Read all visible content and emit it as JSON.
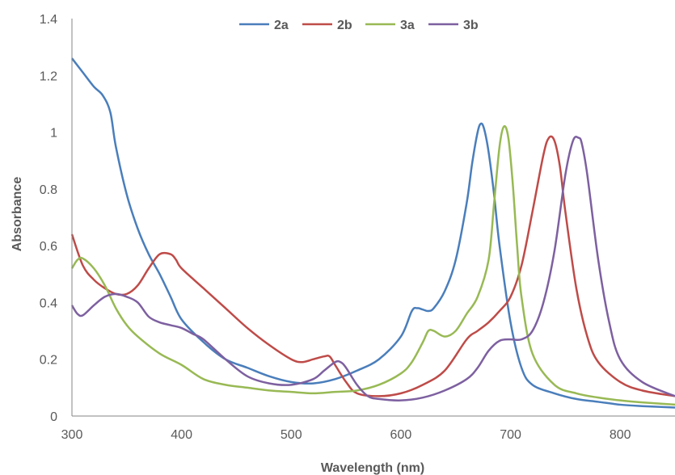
{
  "chart_data": {
    "type": "line",
    "title": "",
    "xlabel": "Wavelength (nm)",
    "ylabel": "Absorbance",
    "xlim": [
      300,
      850
    ],
    "ylim": [
      0,
      1.4
    ],
    "xticks": [
      300,
      400,
      500,
      600,
      700,
      800
    ],
    "xtick_labels": [
      "300",
      "400",
      "500",
      "600",
      "700",
      "800"
    ],
    "yticks": [
      0,
      0.2,
      0.4,
      0.6,
      0.8,
      1,
      1.2,
      1.4
    ],
    "ytick_labels": [
      "0",
      "0.2",
      "0.4",
      "0.6",
      "0.8",
      "1",
      "1.2",
      "1.4"
    ],
    "grid": false,
    "legend_position": "top",
    "series": [
      {
        "name": "2a",
        "color": "#4a7ebb",
        "x": [
          300,
          310,
          320,
          328,
          335,
          340,
          350,
          360,
          370,
          380,
          390,
          400,
          420,
          440,
          460,
          480,
          500,
          520,
          540,
          560,
          580,
          600,
          610,
          615,
          620,
          625,
          630,
          640,
          650,
          660,
          665,
          670,
          673,
          676,
          680,
          685,
          690,
          700,
          710,
          720,
          740,
          760,
          780,
          800,
          820,
          850
        ],
        "y": [
          1.26,
          1.21,
          1.16,
          1.13,
          1.07,
          0.95,
          0.78,
          0.66,
          0.57,
          0.5,
          0.42,
          0.34,
          0.26,
          0.2,
          0.17,
          0.14,
          0.12,
          0.115,
          0.13,
          0.16,
          0.2,
          0.28,
          0.37,
          0.38,
          0.375,
          0.37,
          0.38,
          0.44,
          0.55,
          0.75,
          0.89,
          1.0,
          1.03,
          1.01,
          0.93,
          0.78,
          0.6,
          0.33,
          0.17,
          0.11,
          0.08,
          0.06,
          0.05,
          0.04,
          0.035,
          0.03
        ]
      },
      {
        "name": "2b",
        "color": "#be4b48",
        "x": [
          300,
          310,
          320,
          330,
          340,
          350,
          360,
          370,
          380,
          390,
          395,
          400,
          420,
          440,
          460,
          480,
          500,
          510,
          520,
          530,
          535,
          540,
          550,
          560,
          580,
          600,
          620,
          640,
          660,
          670,
          680,
          690,
          700,
          710,
          720,
          730,
          735,
          740,
          745,
          750,
          760,
          770,
          780,
          800,
          820,
          850
        ],
        "y": [
          0.64,
          0.53,
          0.48,
          0.45,
          0.43,
          0.43,
          0.46,
          0.52,
          0.57,
          0.57,
          0.55,
          0.52,
          0.45,
          0.38,
          0.31,
          0.25,
          0.2,
          0.19,
          0.2,
          0.21,
          0.21,
          0.18,
          0.12,
          0.08,
          0.07,
          0.08,
          0.11,
          0.16,
          0.27,
          0.3,
          0.33,
          0.37,
          0.42,
          0.53,
          0.72,
          0.92,
          0.98,
          0.97,
          0.88,
          0.72,
          0.45,
          0.28,
          0.19,
          0.12,
          0.09,
          0.07
        ]
      },
      {
        "name": "3a",
        "color": "#98b954",
        "x": [
          300,
          305,
          310,
          320,
          330,
          340,
          350,
          360,
          380,
          400,
          420,
          440,
          460,
          480,
          500,
          520,
          540,
          560,
          580,
          600,
          610,
          620,
          625,
          630,
          640,
          650,
          660,
          670,
          680,
          685,
          690,
          694,
          698,
          702,
          706,
          710,
          720,
          740,
          760,
          780,
          800,
          820,
          850
        ],
        "y": [
          0.52,
          0.55,
          0.555,
          0.52,
          0.46,
          0.38,
          0.32,
          0.28,
          0.22,
          0.18,
          0.13,
          0.11,
          0.1,
          0.09,
          0.085,
          0.08,
          0.085,
          0.09,
          0.11,
          0.15,
          0.19,
          0.26,
          0.3,
          0.3,
          0.28,
          0.3,
          0.36,
          0.42,
          0.55,
          0.75,
          0.95,
          1.02,
          0.98,
          0.82,
          0.6,
          0.42,
          0.22,
          0.11,
          0.08,
          0.065,
          0.055,
          0.048,
          0.04
        ]
      },
      {
        "name": "3b",
        "color": "#7d60a0",
        "x": [
          300,
          305,
          310,
          320,
          330,
          340,
          350,
          360,
          370,
          380,
          390,
          400,
          410,
          420,
          440,
          460,
          480,
          500,
          520,
          530,
          540,
          545,
          550,
          560,
          570,
          580,
          600,
          620,
          640,
          660,
          670,
          680,
          690,
          700,
          710,
          720,
          730,
          740,
          750,
          757,
          762,
          765,
          770,
          780,
          790,
          800,
          820,
          850
        ],
        "y": [
          0.39,
          0.36,
          0.355,
          0.39,
          0.42,
          0.43,
          0.42,
          0.4,
          0.35,
          0.33,
          0.32,
          0.31,
          0.29,
          0.27,
          0.2,
          0.14,
          0.115,
          0.11,
          0.13,
          0.16,
          0.19,
          0.19,
          0.17,
          0.11,
          0.07,
          0.06,
          0.055,
          0.065,
          0.09,
          0.13,
          0.17,
          0.23,
          0.265,
          0.27,
          0.27,
          0.3,
          0.4,
          0.58,
          0.85,
          0.97,
          0.98,
          0.96,
          0.85,
          0.55,
          0.33,
          0.2,
          0.12,
          0.07
        ]
      }
    ]
  }
}
